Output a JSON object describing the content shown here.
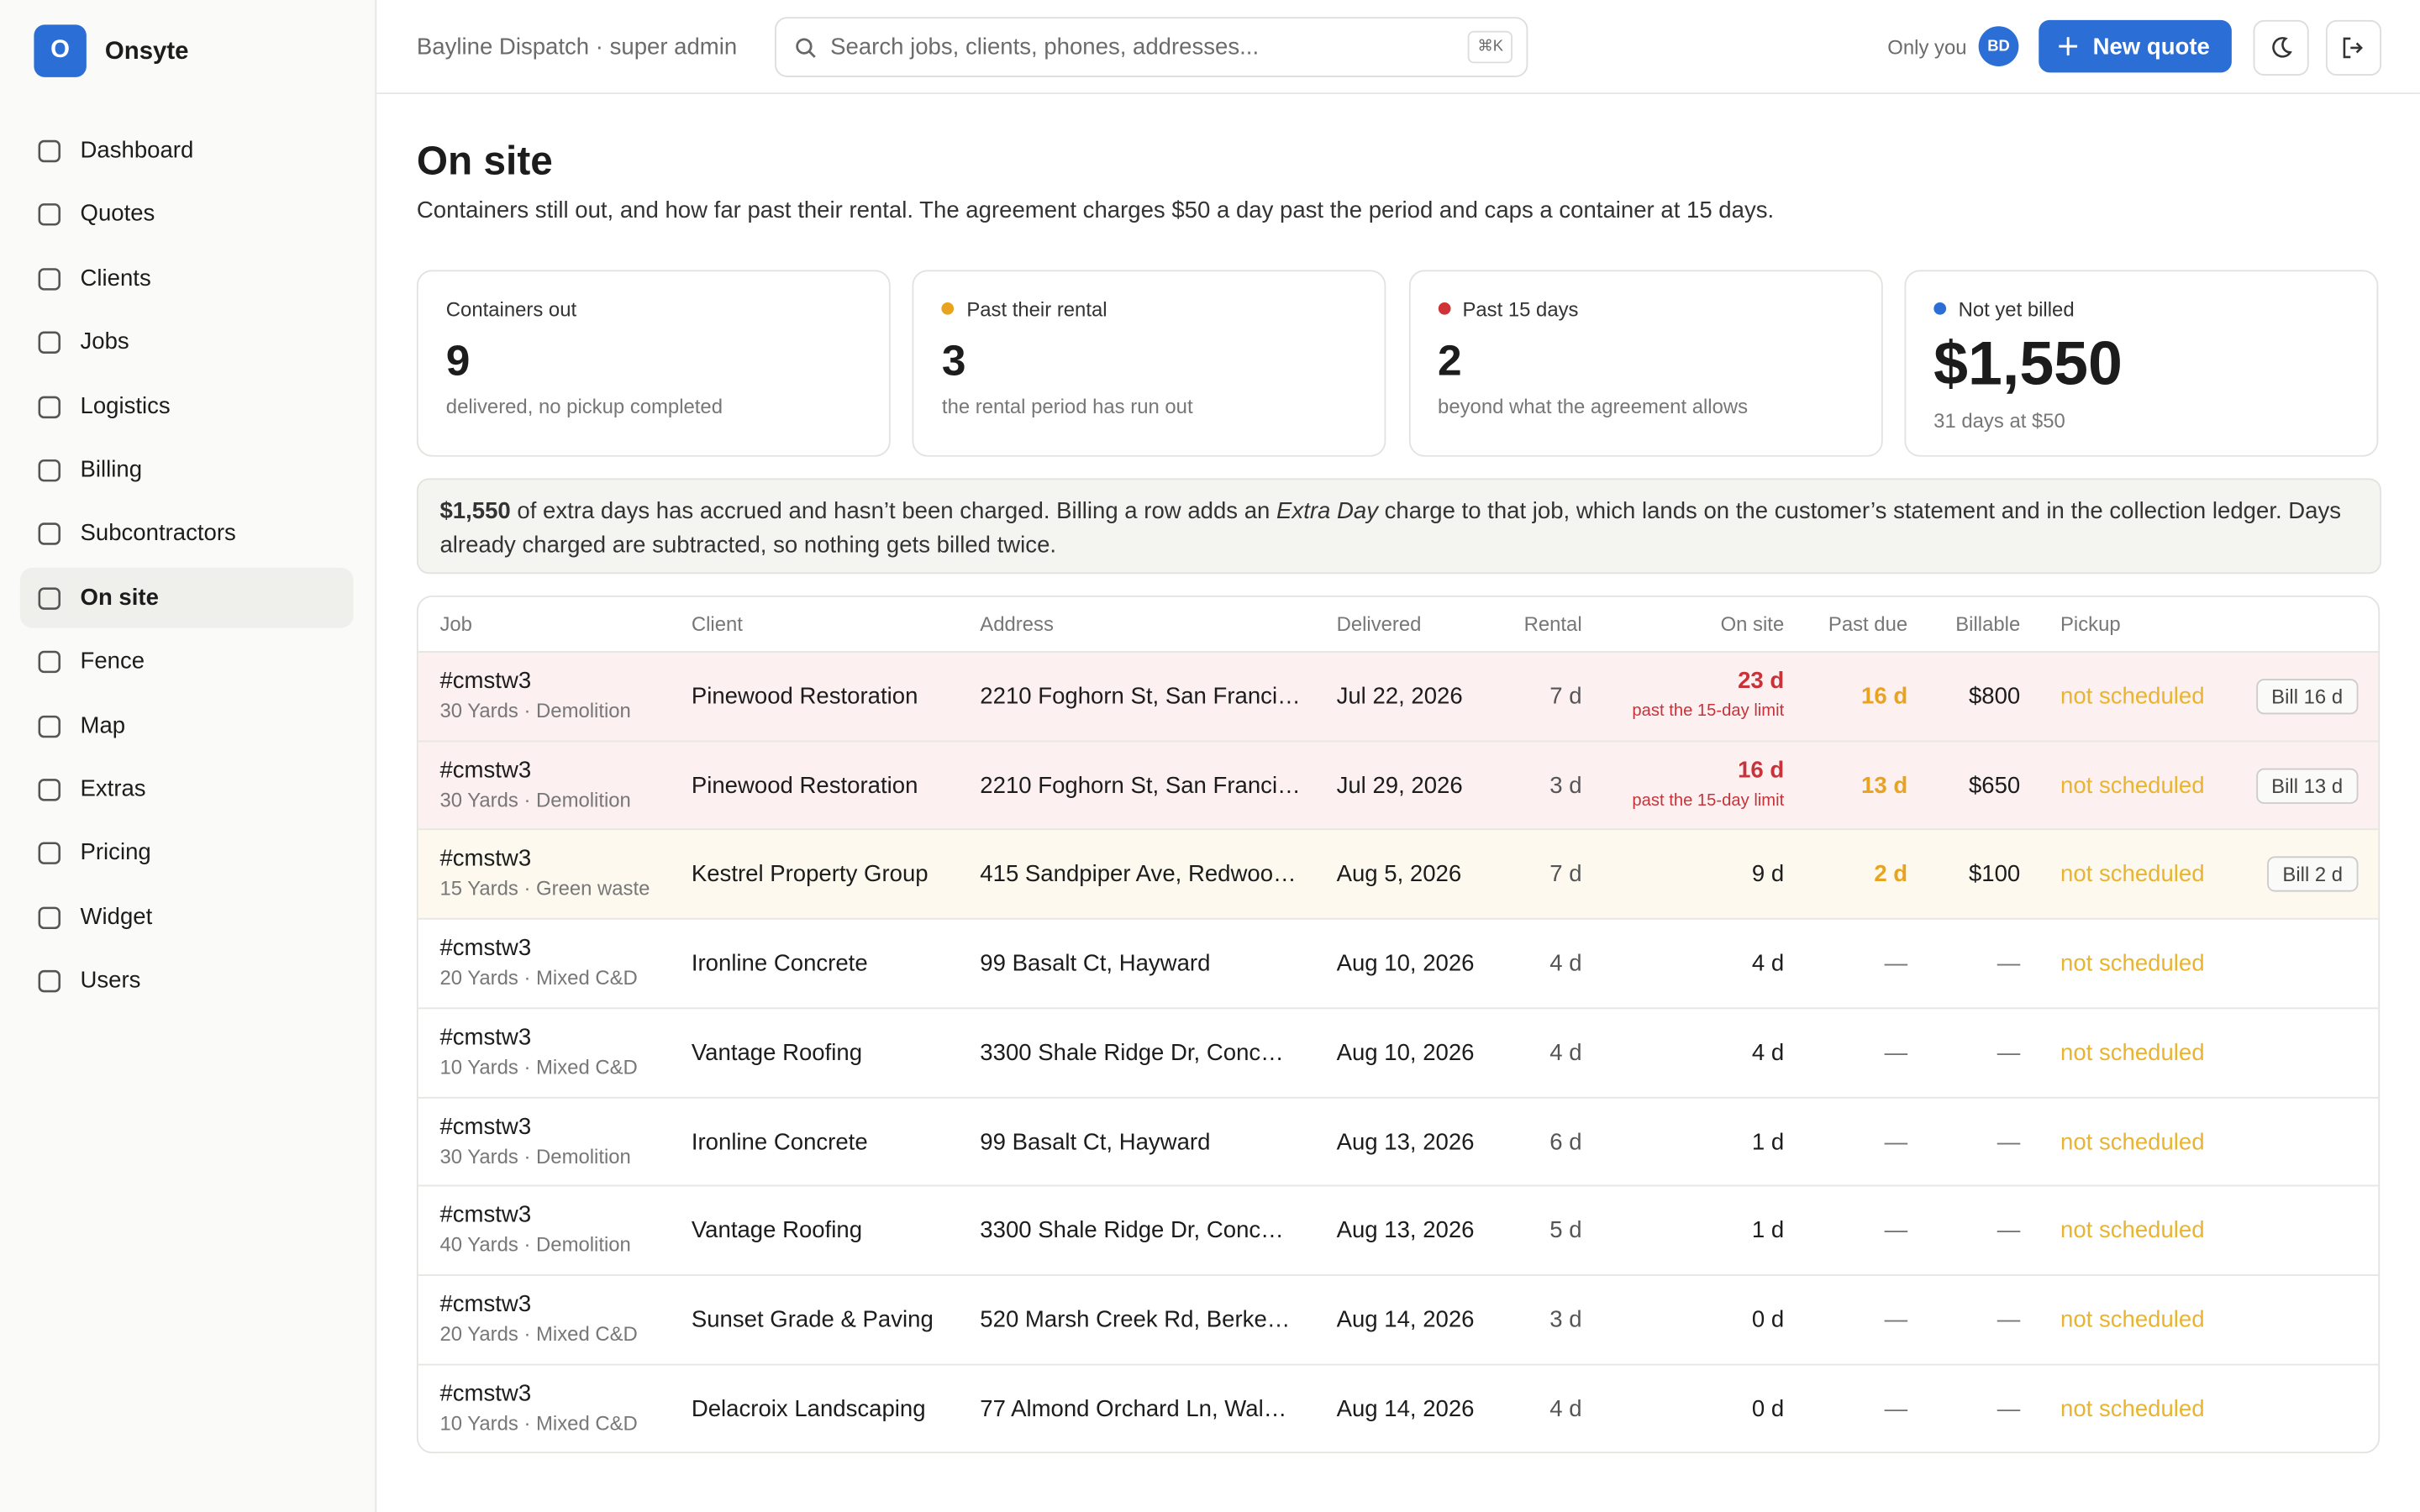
{
  "brand": {
    "mark": "O",
    "name": "Onsyte"
  },
  "nav": {
    "items": [
      "Dashboard",
      "Quotes",
      "Clients",
      "Jobs",
      "Logistics",
      "Billing",
      "Subcontractors",
      "On site",
      "Fence",
      "Map",
      "Extras",
      "Pricing",
      "Widget",
      "Users"
    ],
    "active": 7
  },
  "header": {
    "org": "Bayline Dispatch · super admin",
    "search": "Search jobs, clients, phones, addresses...",
    "shortcut": "⌘K",
    "visibility": "Only you",
    "avatar": "BD",
    "new_quote": "New quote"
  },
  "page": {
    "title": "On site",
    "description": "Containers still out, and how far past their rental. The agreement charges $50 a day past the period and caps a container at 15 days."
  },
  "stats": [
    {
      "label": "Containers out",
      "value": "9",
      "note": "delivered, no pickup completed"
    },
    {
      "label": "Past their rental",
      "value": "3",
      "note": "the rental period has run out",
      "color": "#e8a321"
    },
    {
      "label": "Past 15 days",
      "value": "2",
      "note": "beyond what the agreement allows",
      "color": "#cf3338"
    },
    {
      "label": "Not yet billed",
      "value": "$1,550",
      "note": "31 days at $50",
      "color": "#2b6fd6"
    }
  ],
  "notice": {
    "amount": "$1,550",
    "text1": " of extra days has accrued and hasn’t been charged. Billing a row adds an ",
    "emphasis": "Extra Day",
    "text2": " charge to that job, which lands on the customer’s statement and in the collection ledger. Days already charged are subtracted, so nothing gets billed twice."
  },
  "table": {
    "columns": [
      "Job",
      "Client",
      "Address",
      "Delivered",
      "Rental",
      "On site",
      "Past due",
      "Billable",
      "Pickup"
    ],
    "rows": [
      {
        "job": "#cmstw3",
        "detail": "30 Yards · Demolition",
        "client": "Pinewood Restoration",
        "address": "2210 Foghorn St, San Franci…",
        "delivered": "Jul 22, 2026",
        "rental": "7 d",
        "onsite": "23 d",
        "onsite_note": "past the 15-day limit",
        "past_due": "16 d",
        "billable": "$800",
        "pickup": "not scheduled",
        "action": "Bill 16 d",
        "color": "#fcf0f1"
      },
      {
        "job": "#cmstw3",
        "detail": "30 Yards · Demolition",
        "client": "Pinewood Restoration",
        "address": "2210 Foghorn St, San Franci…",
        "delivered": "Jul 29, 2026",
        "rental": "3 d",
        "onsite": "16 d",
        "onsite_note": "past the 15-day limit",
        "past_due": "13 d",
        "billable": "$650",
        "pickup": "not scheduled",
        "action": "Bill 13 d",
        "color": "#fcf0f1"
      },
      {
        "job": "#cmstw3",
        "detail": "15 Yards · Green waste",
        "client": "Kestrel Property Group",
        "address": "415 Sandpiper Ave, Redwoo…",
        "delivered": "Aug 5, 2026",
        "rental": "7 d",
        "onsite": "9 d",
        "past_due": "2 d",
        "billable": "$100",
        "pickup": "not scheduled",
        "action": "Bill 2 d",
        "color": "#fdf9ee"
      },
      {
        "job": "#cmstw3",
        "detail": "20 Yards · Mixed C&D",
        "client": "Ironline Concrete",
        "address": "99 Basalt Ct, Hayward",
        "delivered": "Aug 10, 2026",
        "rental": "4 d",
        "onsite": "4 d",
        "past_due": "—",
        "billable": "—",
        "pickup": "not scheduled"
      },
      {
        "job": "#cmstw3",
        "detail": "10 Yards · Mixed C&D",
        "client": "Vantage Roofing",
        "address": "3300 Shale Ridge Dr, Conc…",
        "delivered": "Aug 10, 2026",
        "rental": "4 d",
        "onsite": "4 d",
        "past_due": "—",
        "billable": "—",
        "pickup": "not scheduled"
      },
      {
        "job": "#cmstw3",
        "detail": "30 Yards · Demolition",
        "client": "Ironline Concrete",
        "address": "99 Basalt Ct, Hayward",
        "delivered": "Aug 13, 2026",
        "rental": "6 d",
        "onsite": "1 d",
        "past_due": "—",
        "billable": "—",
        "pickup": "not scheduled"
      },
      {
        "job": "#cmstw3",
        "detail": "40 Yards · Demolition",
        "client": "Vantage Roofing",
        "address": "3300 Shale Ridge Dr, Conc…",
        "delivered": "Aug 13, 2026",
        "rental": "5 d",
        "onsite": "1 d",
        "past_due": "—",
        "billable": "—",
        "pickup": "not scheduled"
      },
      {
        "job": "#cmstw3",
        "detail": "20 Yards · Mixed C&D",
        "client": "Sunset Grade & Paving",
        "address": "520 Marsh Creek Rd, Berke…",
        "delivered": "Aug 14, 2026",
        "rental": "3 d",
        "onsite": "0 d",
        "past_due": "—",
        "billable": "—",
        "pickup": "not scheduled"
      },
      {
        "job": "#cmstw3",
        "detail": "10 Yards · Mixed C&D",
        "client": "Delacroix Landscaping",
        "address": "77 Almond Orchard Ln, Wal…",
        "delivered": "Aug 14, 2026",
        "rental": "4 d",
        "onsite": "0 d",
        "past_due": "—",
        "billable": "—",
        "pickup": "not scheduled"
      }
    ]
  }
}
